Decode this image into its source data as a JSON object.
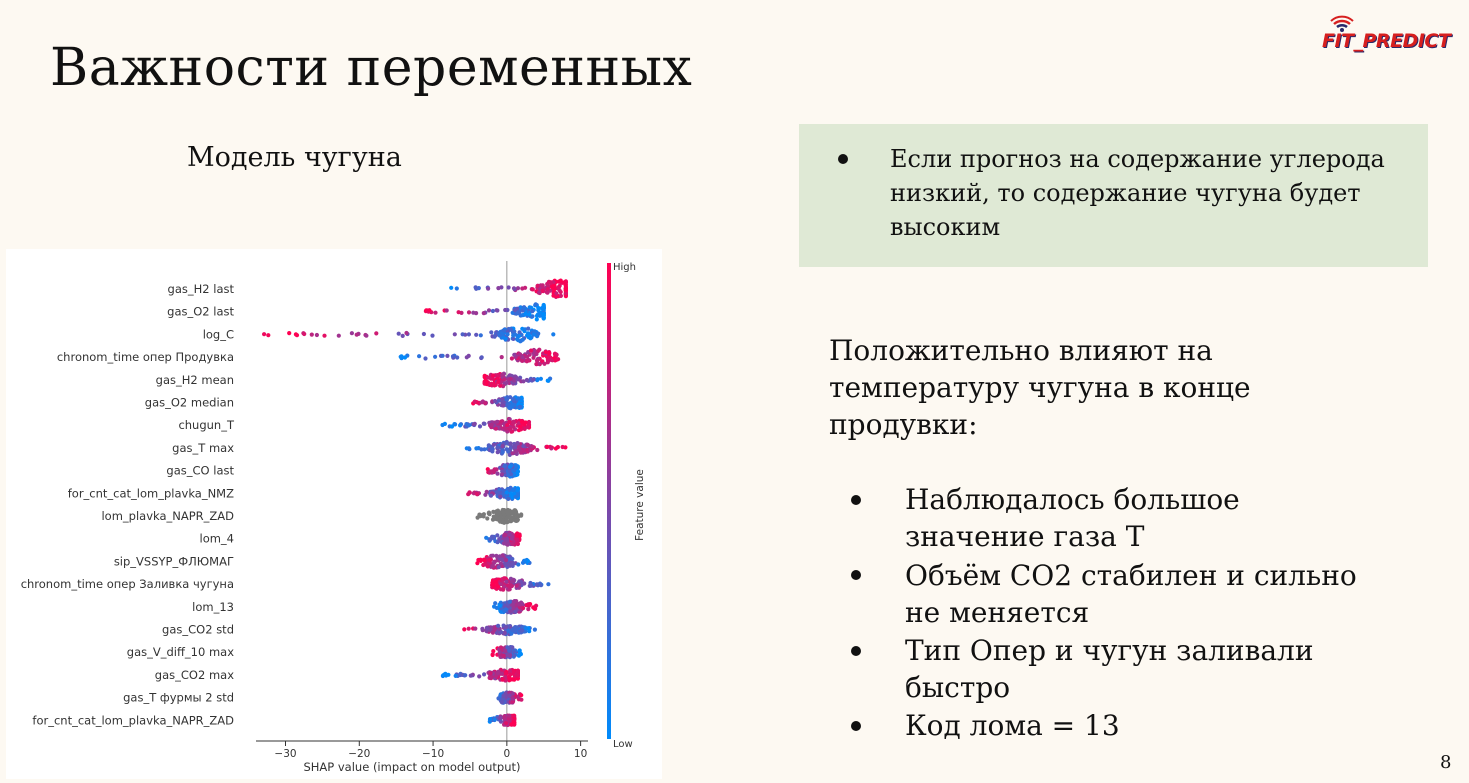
{
  "slide": {
    "title": "Важности переменных",
    "subtitle": "Модель чугуна",
    "logo_text": "FIT_PREDICT",
    "page_number": "8",
    "green_box_text": "Если прогноз на содержание углерода низкий, то содержание чугуна будет высоким",
    "right_heading": "Положительно влияют на температуру чугуна в конце продувки:",
    "bullets": [
      "Наблюдалось большое значение газа T",
      "Объём CO2 стабилен и сильно не меняется",
      "Тип Опер и чугун заливали быстро",
      "Код лома = 13"
    ],
    "colors": {
      "background": "#fdf9f2",
      "box_green": "#dfe9d5",
      "shap_high": "#ff0052",
      "shap_low": "#008bfb",
      "shap_missing": "#7a7a7a"
    }
  },
  "chart_data": {
    "type": "scatter",
    "subtype": "shap-beeswarm",
    "xlabel": "SHAP value (impact on model output)",
    "xlim": [
      -34,
      11
    ],
    "xticks": [
      -30,
      -20,
      -10,
      0,
      10
    ],
    "colorbar_label": "Feature value",
    "colorbar_high": "High",
    "colorbar_low": "Low",
    "features": [
      {
        "name": "gas_H2 last",
        "min": -10,
        "max": 8,
        "center": 7,
        "hi_side": "right",
        "width": 1.0
      },
      {
        "name": "gas_O2 last",
        "min": -11,
        "max": 5,
        "center": 4,
        "hi_side": "left",
        "width": 0.9
      },
      {
        "name": "log_C",
        "min": -33,
        "max": 9,
        "center": 1.5,
        "hi_side": "left",
        "width": 0.85
      },
      {
        "name": "chronom_time опер Продувка",
        "min": -15,
        "max": 9,
        "center": 4,
        "hi_side": "right",
        "width": 0.9
      },
      {
        "name": "gas_H2 mean",
        "min": -3,
        "max": 6,
        "center": -1,
        "hi_side": "left",
        "width": 0.75
      },
      {
        "name": "gas_O2 median",
        "min": -5,
        "max": 2,
        "center": 1,
        "hi_side": "left",
        "width": 0.7
      },
      {
        "name": "chugun_T",
        "min": -9,
        "max": 3,
        "center": 0.5,
        "hi_side": "right",
        "width": 0.75
      },
      {
        "name": "gas_T max",
        "min": -6,
        "max": 8,
        "center": 0.5,
        "hi_side": "right",
        "width": 0.8
      },
      {
        "name": "gas_CO last",
        "min": -3,
        "max": 1.5,
        "center": 0.5,
        "hi_side": "left",
        "width": 0.7
      },
      {
        "name": "for_cnt_cat_lom_plavka_NMZ",
        "min": -6,
        "max": 1.5,
        "center": 0.5,
        "hi_side": "left",
        "width": 0.65
      },
      {
        "name": "lom_plavka_NAPR_ZAD",
        "min": -4,
        "max": 2,
        "center": 0,
        "hi_side": "none",
        "width": 0.8
      },
      {
        "name": "lom_4",
        "min": -3,
        "max": 2,
        "center": 0.5,
        "hi_side": "right",
        "width": 0.7
      },
      {
        "name": "sip_VSSYP_ФЛЮМАГ",
        "min": -4,
        "max": 3.5,
        "center": -1,
        "hi_side": "left",
        "width": 0.8
      },
      {
        "name": "chronom_time опер Заливка чугуна",
        "min": -2,
        "max": 6,
        "center": 0,
        "hi_side": "left",
        "width": 0.7
      },
      {
        "name": "lom_13",
        "min": -2,
        "max": 4,
        "center": 0.5,
        "hi_side": "right",
        "width": 0.7
      },
      {
        "name": "gas_CO2 std",
        "min": -7,
        "max": 4,
        "center": 0,
        "hi_side": "left",
        "width": 0.55
      },
      {
        "name": "gas_V_diff_10 max",
        "min": -2,
        "max": 2,
        "center": 0,
        "hi_side": "left",
        "width": 0.6
      },
      {
        "name": "gas_CO2 max",
        "min": -9,
        "max": 1.5,
        "center": 0,
        "hi_side": "right",
        "width": 0.65
      },
      {
        "name": "gas_T фурмы 2 std",
        "min": -1.5,
        "max": 2,
        "center": 0,
        "hi_side": "right",
        "width": 0.6
      },
      {
        "name": "for_cnt_cat_lom_plavka_NAPR_ZAD",
        "min": -2.5,
        "max": 1,
        "center": 0.5,
        "hi_side": "right",
        "width": 0.55
      }
    ]
  }
}
